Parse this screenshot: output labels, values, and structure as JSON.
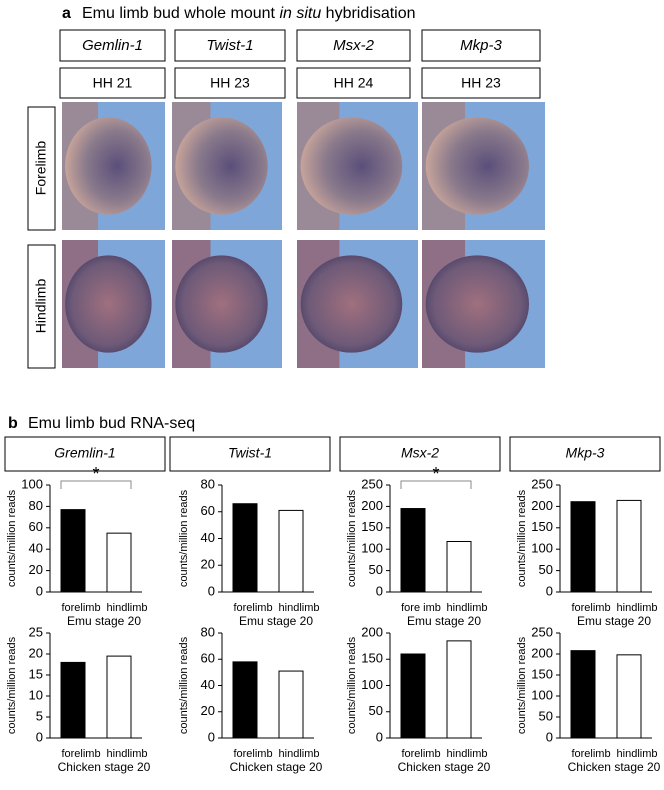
{
  "panel_a": {
    "label": "a",
    "title_parts": [
      "Emu limb bud whole mount ",
      "in situ",
      " hybridisation"
    ],
    "genes": [
      "Gemlin-1",
      "Twist-1",
      "Msx-2",
      "Mkp-3"
    ],
    "stages": [
      "HH 21",
      "HH 23",
      "HH 24",
      "HH 23"
    ],
    "rows": [
      "Forelimb",
      "Hindlimb"
    ]
  },
  "panel_b": {
    "label": "b",
    "title": "Emu limb bud RNA-seq",
    "genes": [
      "Gremlin-1",
      "Twist-1",
      "Msx-2",
      "Mkp-3"
    ]
  },
  "chart_data": [
    {
      "type": "bar",
      "categories": [
        "forelimb",
        "hindlimb"
      ],
      "values": [
        77,
        55
      ],
      "colors": [
        "#000000",
        "#ffffff"
      ],
      "xlabel": "Emu stage 20",
      "ylabel": "counts/million reads",
      "ylim": [
        0,
        100
      ],
      "yticks": [
        0,
        20,
        40,
        60,
        80,
        100
      ],
      "significance": "*"
    },
    {
      "type": "bar",
      "categories": [
        "forelimb",
        "hindlimb"
      ],
      "values": [
        66,
        61
      ],
      "colors": [
        "#000000",
        "#ffffff"
      ],
      "xlabel": "Emu stage 20",
      "ylabel": "counts/million reads",
      "ylim": [
        0,
        80
      ],
      "yticks": [
        0,
        20,
        40,
        60,
        80
      ]
    },
    {
      "type": "bar",
      "categories": [
        "fore imb",
        "hindlimb"
      ],
      "values": [
        195,
        118
      ],
      "colors": [
        "#000000",
        "#ffffff"
      ],
      "xlabel": "Emu stage 20",
      "ylabel": "counts/million reads",
      "ylim": [
        0,
        250
      ],
      "yticks": [
        0,
        50,
        100,
        150,
        200,
        250
      ],
      "significance": "*"
    },
    {
      "type": "bar",
      "categories": [
        "forelimb",
        "hindlimb"
      ],
      "values": [
        211,
        214
      ],
      "colors": [
        "#000000",
        "#ffffff"
      ],
      "xlabel": "Emu stage 20",
      "ylabel": "counts/million reads",
      "ylim": [
        0,
        250
      ],
      "yticks": [
        0,
        50,
        100,
        150,
        200,
        250
      ]
    },
    {
      "type": "bar",
      "categories": [
        "forelimb",
        "hindlimb"
      ],
      "values": [
        18,
        19.5
      ],
      "colors": [
        "#000000",
        "#ffffff"
      ],
      "xlabel": "Chicken stage 20",
      "ylabel": "counts/million reads",
      "ylim": [
        0,
        25
      ],
      "yticks": [
        0,
        5,
        10,
        15,
        20,
        25
      ]
    },
    {
      "type": "bar",
      "categories": [
        "forelimb",
        "hindlimb"
      ],
      "values": [
        58,
        51
      ],
      "colors": [
        "#000000",
        "#ffffff"
      ],
      "xlabel": "Chicken stage 20",
      "ylabel": "counts/million reads",
      "ylim": [
        0,
        80
      ],
      "yticks": [
        0,
        20,
        40,
        60,
        80
      ]
    },
    {
      "type": "bar",
      "categories": [
        "forelimb",
        "hindlimb"
      ],
      "values": [
        160,
        185
      ],
      "colors": [
        "#000000",
        "#ffffff"
      ],
      "xlabel": "Chicken stage 20",
      "ylabel": "counts/million reads",
      "ylim": [
        0,
        200
      ],
      "yticks": [
        0,
        50,
        100,
        150,
        200
      ]
    },
    {
      "type": "bar",
      "categories": [
        "forelimb",
        "hindlimb"
      ],
      "values": [
        208,
        198
      ],
      "colors": [
        "#000000",
        "#ffffff"
      ],
      "xlabel": "Chicken stage 20",
      "ylabel": "counts/million reads",
      "ylim": [
        0,
        250
      ],
      "yticks": [
        0,
        50,
        100,
        150,
        200,
        250
      ]
    }
  ]
}
